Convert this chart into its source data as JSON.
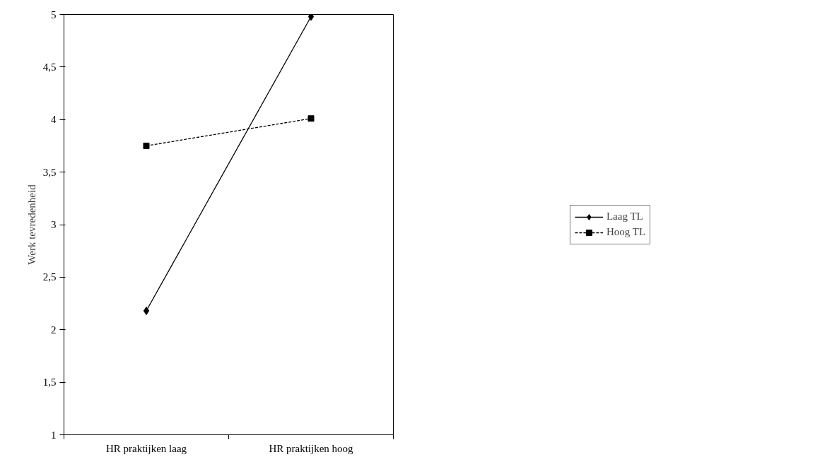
{
  "chart_data": {
    "type": "line",
    "ylabel": "Werk tevredenheid",
    "categories": [
      "HR praktijken laag",
      "HR praktijken hoog"
    ],
    "series": [
      {
        "name": "Laag TL",
        "color": "#000000",
        "marker": "diamond",
        "line_style": "solid",
        "values": [
          2.18,
          4.98
        ]
      },
      {
        "name": "Hoog TL",
        "color": "#000000",
        "marker": "square",
        "line_style": "dashed",
        "values": [
          3.75,
          4.01
        ]
      }
    ],
    "ylim": [
      1,
      5
    ],
    "yticks": [
      1,
      {
        "value": 1.5,
        "label": "1,5"
      },
      2,
      {
        "value": 2.5,
        "label": "2,5"
      },
      3,
      {
        "value": 3.5,
        "label": "3,5"
      },
      4,
      {
        "value": 4.5,
        "label": "4,5"
      },
      5
    ],
    "grid": false,
    "legend": "right"
  }
}
